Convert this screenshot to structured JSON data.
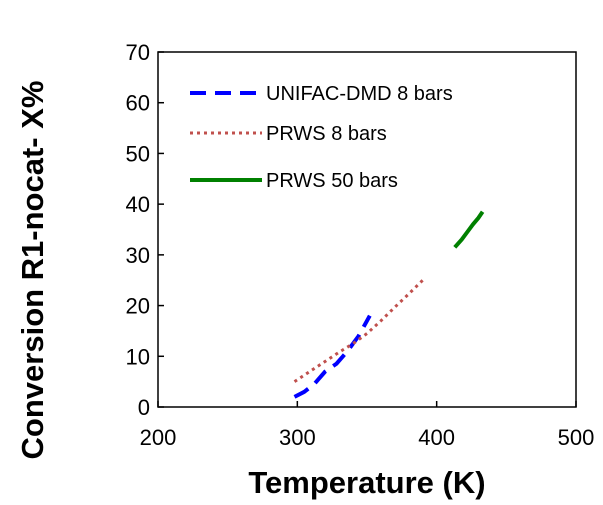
{
  "chart_data": {
    "type": "line",
    "title": "",
    "xlabel": "Temperature (K)",
    "ylabel": "Conversion R1-nocat- X%",
    "xlim": [
      200,
      500
    ],
    "ylim": [
      0,
      70
    ],
    "xticks": [
      200,
      300,
      400,
      500
    ],
    "yticks": [
      0,
      10,
      20,
      30,
      40,
      50,
      60,
      70
    ],
    "grid": false,
    "legend_position": "top-left",
    "series": [
      {
        "name": "UNIFAC-DMD 8 bars",
        "color": "#0000ff",
        "style": "dashed",
        "x": [
          298,
          305,
          312,
          320,
          328,
          336,
          344,
          352
        ],
        "y": [
          2,
          3,
          4.5,
          7,
          8.5,
          11,
          14,
          18
        ]
      },
      {
        "name": "PRWS 8 bars",
        "color": "#c0504d",
        "style": "dotted",
        "x": [
          298,
          310,
          320,
          330,
          340,
          350,
          360,
          370,
          380,
          390
        ],
        "y": [
          5,
          7.2,
          9,
          10.8,
          12.5,
          14.5,
          17,
          19.7,
          22.3,
          25
        ]
      },
      {
        "name": "PRWS 50 bars",
        "color": "#008000",
        "style": "solid",
        "x": [
          413,
          418,
          422,
          426,
          430,
          433
        ],
        "y": [
          31.5,
          33,
          34.5,
          36,
          37.3,
          38.5
        ]
      }
    ]
  }
}
